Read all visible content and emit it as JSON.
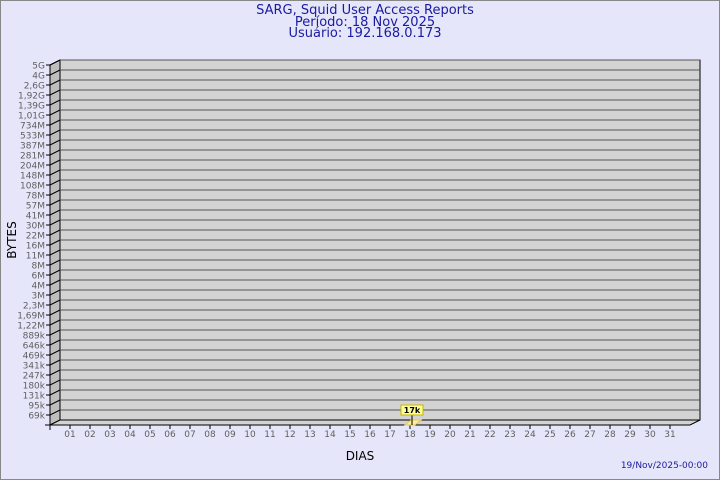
{
  "chart_data": {
    "type": "bar",
    "title": "SARG, Squid User Access Reports",
    "subtitle_period": "Período: 18 Nov 2025",
    "subtitle_user": "Usuário: 192.168.0.173",
    "xlabel": "DIAS",
    "ylabel": "BYTES",
    "yscale": "log",
    "grid": true,
    "y_tick_labels": [
      "5G",
      "4G",
      "2,6G",
      "1,92G",
      "1,39G",
      "1,01G",
      "734M",
      "533M",
      "387M",
      "281M",
      "204M",
      "148M",
      "108M",
      "78M",
      "57M",
      "41M",
      "30M",
      "22M",
      "16M",
      "11M",
      "8M",
      "6M",
      "4M",
      "3M",
      "2,3M",
      "1,69M",
      "1,22M",
      "889k",
      "646k",
      "469k",
      "341k",
      "247k",
      "180k",
      "131k",
      "95k",
      "69k"
    ],
    "categories": [
      "01",
      "02",
      "03",
      "04",
      "05",
      "06",
      "07",
      "08",
      "09",
      "10",
      "11",
      "12",
      "13",
      "14",
      "15",
      "16",
      "17",
      "18",
      "19",
      "20",
      "21",
      "22",
      "23",
      "24",
      "25",
      "26",
      "27",
      "28",
      "29",
      "30",
      "31"
    ],
    "data_points": [
      {
        "day": "18",
        "value": 17000,
        "label": "17k"
      }
    ],
    "colors": {
      "plot_back": "#d3d3d3",
      "side_wall": "#bebebe",
      "grid": "#555555",
      "bar": "#ffee99",
      "label_bg": "#ffff99",
      "text": "#1a1aa0",
      "tick_text": "#606060"
    }
  },
  "footer": {
    "timestamp": "19/Nov/2025-00:00"
  }
}
